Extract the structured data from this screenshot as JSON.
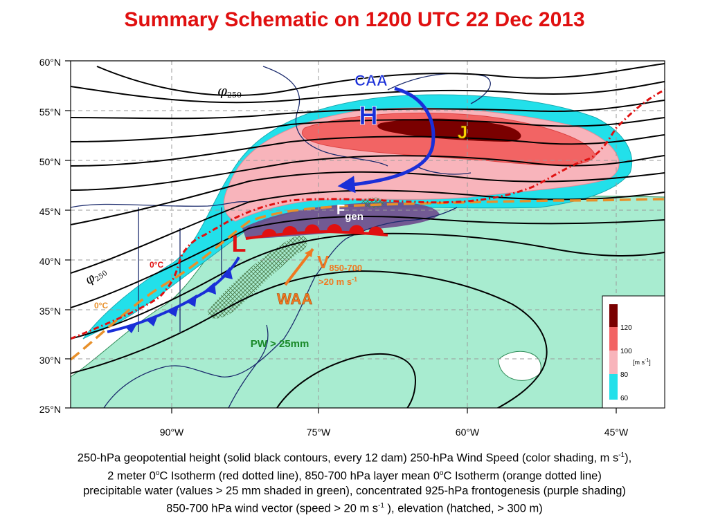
{
  "title": "Summary Schematic on 1200 UTC 22 Dec 2013",
  "axes": {
    "lat_ticks": [
      "60°N",
      "55°N",
      "50°N",
      "45°N",
      "40°N",
      "35°N",
      "30°N",
      "25°N"
    ],
    "lon_ticks": [
      "90°W",
      "75°W",
      "60°W",
      "45°W"
    ]
  },
  "map_labels": {
    "caa": "CAA",
    "high": "H",
    "jet": "J",
    "low": "L",
    "fgen_main": "F",
    "fgen_sub": "gen",
    "waa": "WAA",
    "v_main": "V",
    "v_sub": "850-700",
    "v_speed": ">20 m s",
    "v_speed_sup": "-1",
    "pw": "PW > 25mm",
    "isotherm_red": "0°C",
    "isotherm_orange": "0°C",
    "phi_top": "φ",
    "phi_top_sub": "250",
    "phi_left": "φ",
    "phi_left_sub": "250"
  },
  "legend": {
    "ticks": [
      "120",
      "100",
      "80",
      "60"
    ],
    "unit": "[m s",
    "unit_sup": "-1",
    "unit_end": "]",
    "colors": [
      "#7a0000",
      "#f26464",
      "#f8b4bb",
      "#22e0ea"
    ]
  },
  "colors": {
    "title": "#e01010",
    "wind_60": "#22e0ea",
    "wind_80": "#f8b4bb",
    "wind_100": "#f26464",
    "wind_120": "#7a0000",
    "pw_fill": "#a8ecd0",
    "fgen": "#6b4a8c",
    "isotherm_2m": "#e01010",
    "isotherm_850": "#e8902a",
    "arrows": "#1a2fd8",
    "waa_arrow": "#f07820"
  },
  "caption": {
    "line1_a": "250-hPa geopotential height (solid black contours, every 12 dam) 250-hPa Wind Speed (color shading, m s",
    "line1_sup": "-1",
    "line1_b": "),",
    "line2_a": "2 meter 0",
    "line2_sup1": "o",
    "line2_b": "C Isotherm (red dotted line), 850-700 hPa layer mean 0",
    "line2_sup2": "o",
    "line2_c": "C Isotherm (orange dotted line)",
    "line3": "precipitable water (values > 25 mm shaded in green), concentrated 925-hPa frontogenesis (purple shading)",
    "line4_a": "850-700 hPa wind vector (speed > 20 m s",
    "line4_sup": "-1",
    "line4_b": " ), elevation (hatched, > 300 m)"
  }
}
